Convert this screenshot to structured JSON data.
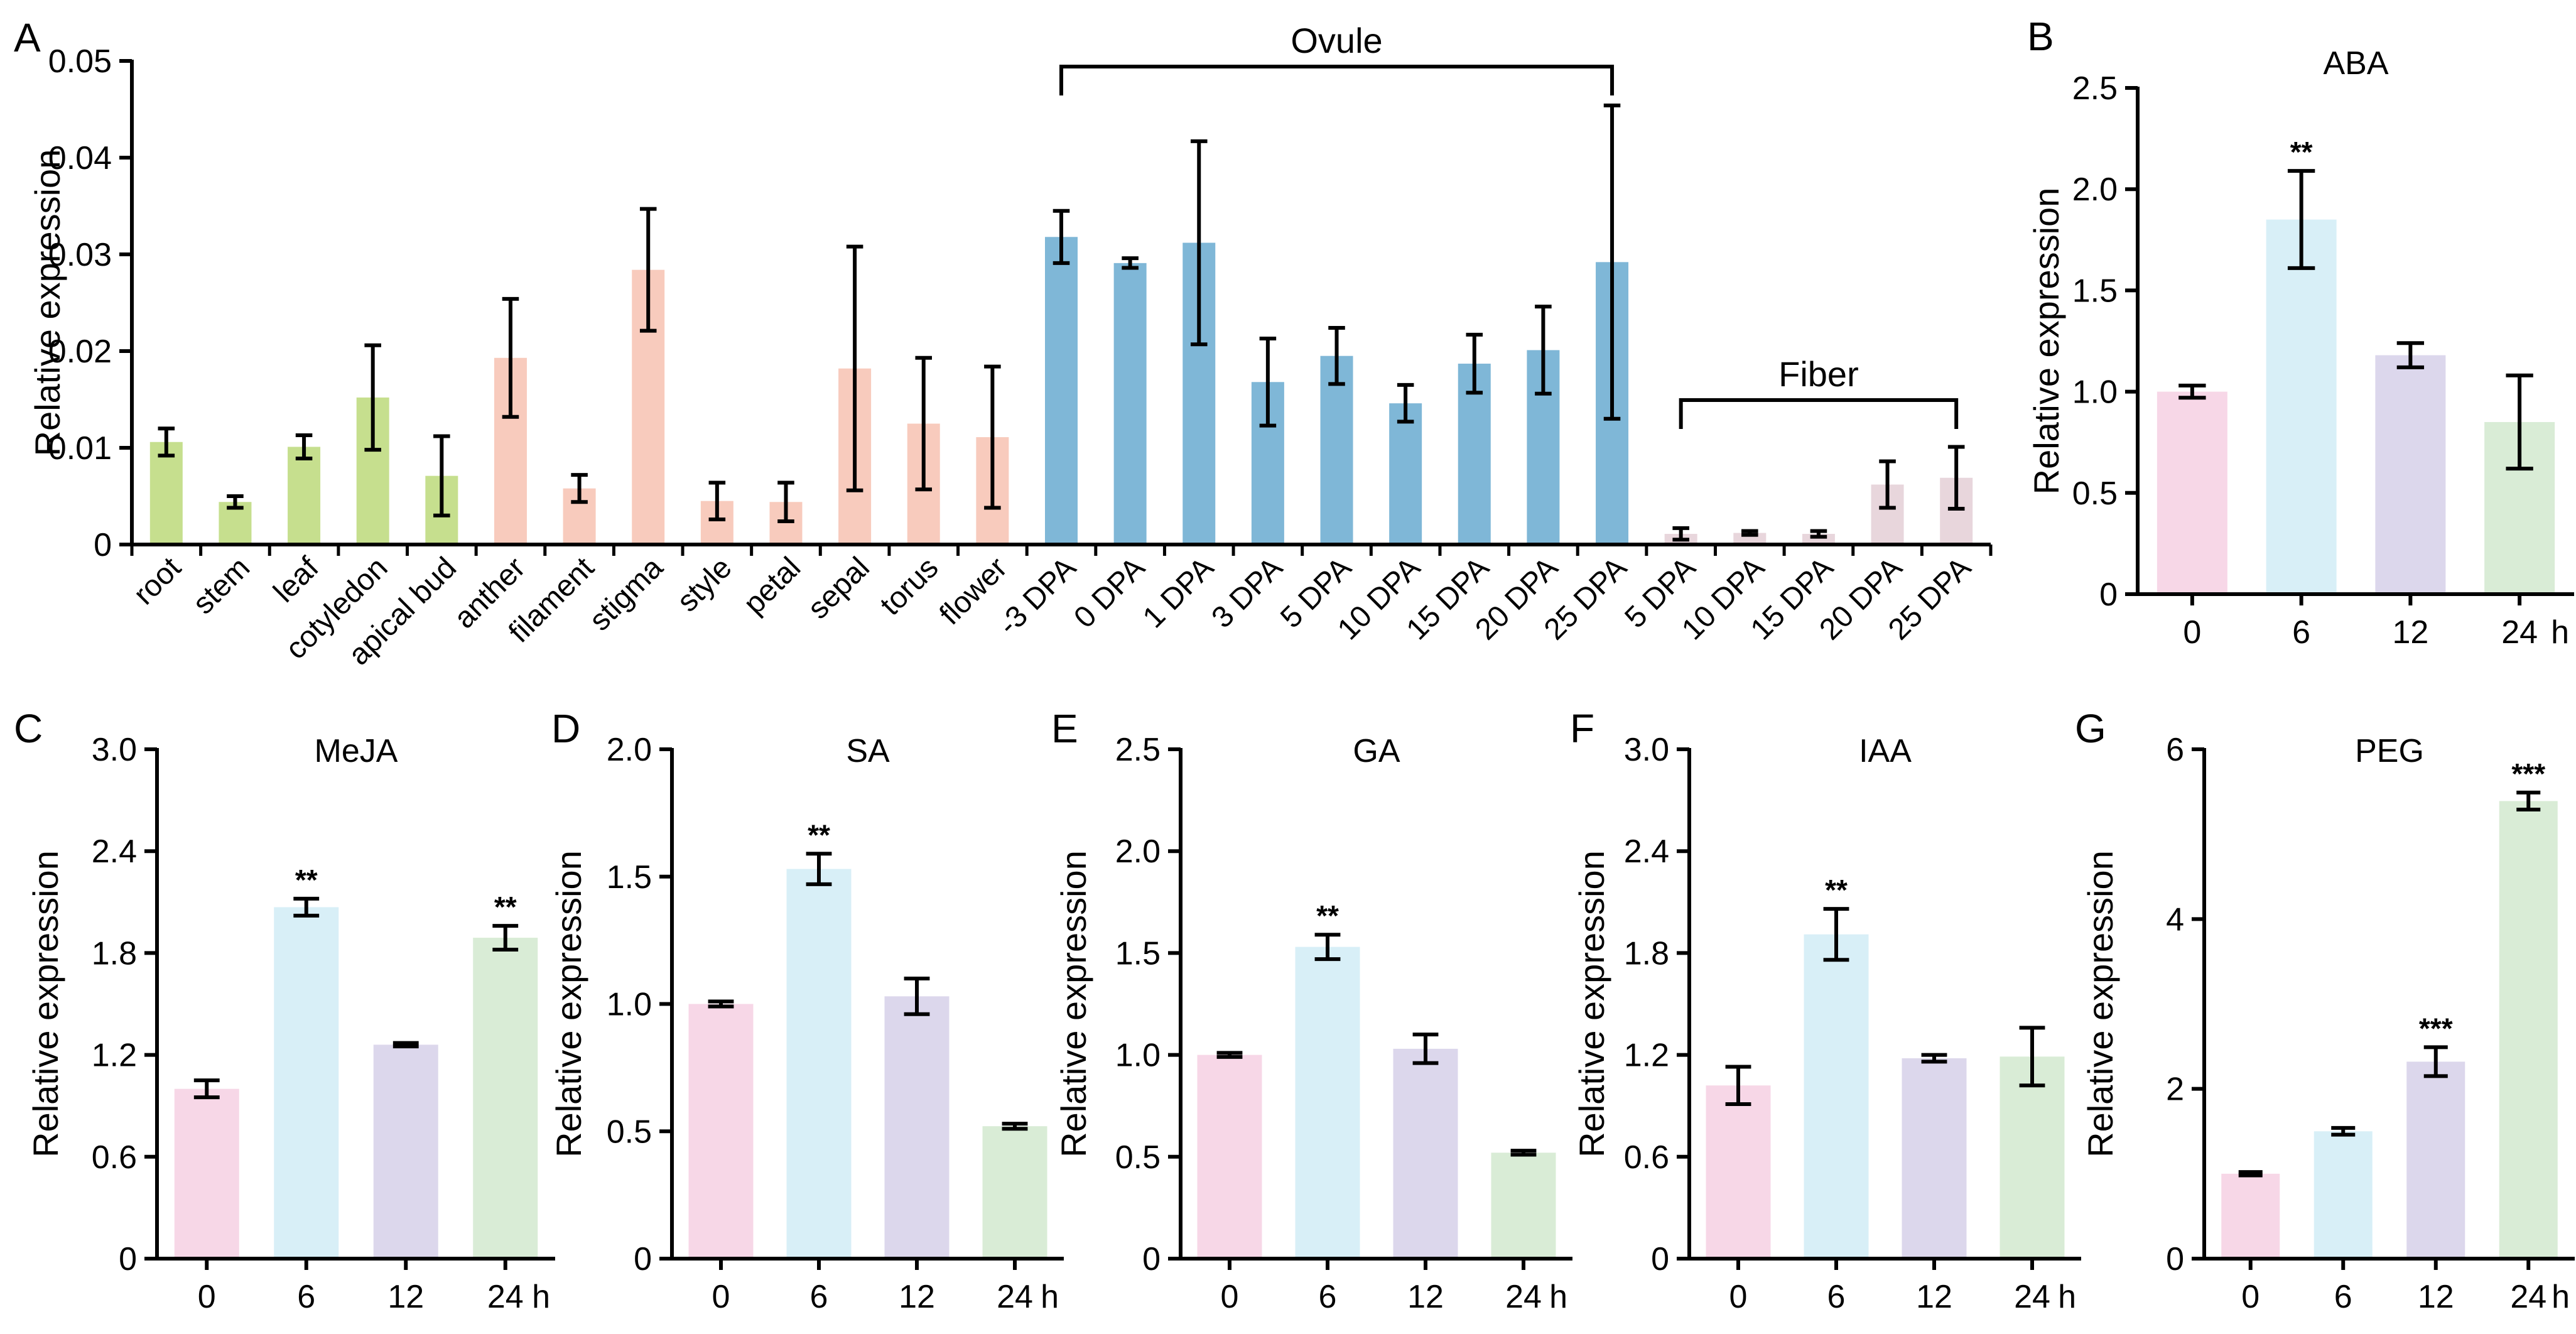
{
  "figure": {
    "background": "#ffffff",
    "axis_color": "#000000",
    "error_bar_color": "#000000"
  },
  "chart_data": [
    {
      "id": "A",
      "panel_label": "A",
      "type": "bar",
      "title": "",
      "ylabel": "Relative expression",
      "xlabel": "",
      "ylim": [
        0,
        0.05
      ],
      "yticks": [
        0,
        0.01,
        0.02,
        0.03,
        0.04,
        0.05
      ],
      "ytick_labels": [
        "0",
        "0.01",
        "0.02",
        "0.03",
        "0.04",
        "0.05"
      ],
      "categories": [
        "root",
        "stem",
        "leaf",
        "cotyledon",
        "apical bud",
        "anther",
        "filament",
        "stigma",
        "style",
        "petal",
        "sepal",
        "torus",
        "flower",
        "-3 DPA",
        "0 DPA",
        "1 DPA",
        "3 DPA",
        "5 DPA",
        "10 DPA",
        "15 DPA",
        "20 DPA",
        "25 DPA",
        "5 DPA",
        "10 DPA",
        "15 DPA",
        "20 DPA",
        "25 DPA"
      ],
      "values": [
        0.0106,
        0.0044,
        0.0101,
        0.0152,
        0.0071,
        0.0193,
        0.0058,
        0.0284,
        0.0045,
        0.0044,
        0.0182,
        0.0125,
        0.0111,
        0.0318,
        0.0291,
        0.0312,
        0.0168,
        0.0195,
        0.0146,
        0.0187,
        0.0201,
        0.0292,
        0.0011,
        0.0012,
        0.0011,
        0.0062,
        0.0069
      ],
      "errors": [
        0.0014,
        0.0006,
        0.0012,
        0.0054,
        0.0041,
        0.0061,
        0.0014,
        0.0063,
        0.0019,
        0.002,
        0.0126,
        0.0068,
        0.0073,
        0.0027,
        0.0005,
        0.0105,
        0.0045,
        0.0029,
        0.0019,
        0.003,
        0.0045,
        0.0162,
        0.0006,
        0.0002,
        0.0003,
        0.0024,
        0.0032
      ],
      "colors": [
        "#c6df8e",
        "#c6df8e",
        "#c6df8e",
        "#c6df8e",
        "#c6df8e",
        "#f8cbbd",
        "#f8cbbd",
        "#f8cbbd",
        "#f8cbbd",
        "#f8cbbd",
        "#f8cbbd",
        "#f8cbbd",
        "#f8cbbd",
        "#7fb7d7",
        "#7fb7d7",
        "#7fb7d7",
        "#7fb7d7",
        "#7fb7d7",
        "#7fb7d7",
        "#7fb7d7",
        "#7fb7d7",
        "#7fb7d7",
        "#e8d6dc",
        "#e8d6dc",
        "#e8d6dc",
        "#e8d6dc",
        "#e8d6dc"
      ],
      "significance": [],
      "unit_label": "",
      "groups": [
        {
          "label": "Ovule",
          "start": 13,
          "end": 21
        },
        {
          "label": "Fiber",
          "start": 22,
          "end": 26
        }
      ]
    },
    {
      "id": "B",
      "panel_label": "B",
      "type": "bar",
      "title": "ABA",
      "ylabel": "Relative expression",
      "xlabel": "h",
      "ylim": [
        0,
        2.5
      ],
      "yticks": [
        0,
        0.5,
        1.0,
        1.5,
        2.0,
        2.5
      ],
      "ytick_labels": [
        "0",
        "0.5",
        "1.0",
        "1.5",
        "2.0",
        "2.5"
      ],
      "categories": [
        "0",
        "6",
        "12",
        "24"
      ],
      "values": [
        1.0,
        1.85,
        1.18,
        0.85
      ],
      "errors": [
        0.03,
        0.24,
        0.06,
        0.23
      ],
      "colors": [
        "#f7d7e7",
        "#d8eff7",
        "#dcd7ec",
        "#d9ecd6"
      ],
      "significance": [
        "",
        "**",
        "",
        ""
      ],
      "unit_label": "h",
      "groups": []
    },
    {
      "id": "C",
      "panel_label": "C",
      "type": "bar",
      "title": "MeJA",
      "ylabel": "Relative expression",
      "xlabel": "h",
      "ylim": [
        0,
        3.0
      ],
      "yticks": [
        0,
        0.6,
        1.2,
        1.8,
        2.4,
        3.0
      ],
      "ytick_labels": [
        "0",
        "0.6",
        "1.2",
        "1.8",
        "2.4",
        "3.0"
      ],
      "categories": [
        "0",
        "6",
        "12",
        "24"
      ],
      "values": [
        1.0,
        2.07,
        1.26,
        1.89
      ],
      "errors": [
        0.05,
        0.05,
        0.01,
        0.07
      ],
      "colors": [
        "#f7d7e7",
        "#d8eff7",
        "#dcd7ec",
        "#d9ecd6"
      ],
      "significance": [
        "",
        "**",
        "",
        "**"
      ],
      "unit_label": "h",
      "groups": []
    },
    {
      "id": "D",
      "panel_label": "D",
      "type": "bar",
      "title": "SA",
      "ylabel": "Relative expression",
      "xlabel": "h",
      "ylim": [
        0,
        2.0
      ],
      "yticks": [
        0,
        0.5,
        1.0,
        1.5,
        2.0
      ],
      "ytick_labels": [
        "0",
        "0.5",
        "1.0",
        "1.5",
        "2.0"
      ],
      "categories": [
        "0",
        "6",
        "12",
        "24"
      ],
      "values": [
        1.0,
        1.53,
        1.03,
        0.52
      ],
      "errors": [
        0.01,
        0.06,
        0.07,
        0.01
      ],
      "colors": [
        "#f7d7e7",
        "#d8eff7",
        "#dcd7ec",
        "#d9ecd6"
      ],
      "significance": [
        "",
        "**",
        "",
        ""
      ],
      "unit_label": "h",
      "groups": []
    },
    {
      "id": "E",
      "panel_label": "E",
      "type": "bar",
      "title": "GA",
      "ylabel": "Relative expression",
      "xlabel": "h",
      "ylim": [
        0,
        2.5
      ],
      "yticks": [
        0,
        0.5,
        1.0,
        1.5,
        2.0,
        2.5
      ],
      "ytick_labels": [
        "0",
        "0.5",
        "1.0",
        "1.5",
        "2.0",
        "2.5"
      ],
      "categories": [
        "0",
        "6",
        "12",
        "24"
      ],
      "values": [
        1.0,
        1.53,
        1.03,
        0.52
      ],
      "errors": [
        0.01,
        0.06,
        0.07,
        0.01
      ],
      "colors": [
        "#f7d7e7",
        "#d8eff7",
        "#dcd7ec",
        "#d9ecd6"
      ],
      "significance": [
        "",
        "**",
        "",
        ""
      ],
      "unit_label": "h",
      "groups": []
    },
    {
      "id": "F",
      "panel_label": "F",
      "type": "bar",
      "title": "IAA",
      "ylabel": "Relative expression",
      "xlabel": "h",
      "ylim": [
        0,
        3.0
      ],
      "yticks": [
        0,
        0.6,
        1.2,
        1.8,
        2.4,
        3.0
      ],
      "ytick_labels": [
        "0",
        "0.6",
        "1.2",
        "1.8",
        "2.4",
        "3.0"
      ],
      "categories": [
        "0",
        "6",
        "12",
        "24"
      ],
      "values": [
        1.02,
        1.91,
        1.18,
        1.19
      ],
      "errors": [
        0.11,
        0.15,
        0.02,
        0.17
      ],
      "colors": [
        "#f7d7e7",
        "#d8eff7",
        "#dcd7ec",
        "#d9ecd6"
      ],
      "significance": [
        "",
        "**",
        "",
        ""
      ],
      "unit_label": "h",
      "groups": []
    },
    {
      "id": "G",
      "panel_label": "G",
      "type": "bar",
      "title": "PEG",
      "ylabel": "Relative expression",
      "xlabel": "h",
      "ylim": [
        0,
        6
      ],
      "yticks": [
        0,
        2,
        4,
        6
      ],
      "ytick_labels": [
        "0",
        "2",
        "4",
        "6"
      ],
      "categories": [
        "0",
        "6",
        "12",
        "24"
      ],
      "values": [
        1.0,
        1.5,
        2.32,
        5.39
      ],
      "errors": [
        0.02,
        0.04,
        0.17,
        0.1
      ],
      "colors": [
        "#f7d7e7",
        "#d8eff7",
        "#dcd7ec",
        "#d9ecd6"
      ],
      "significance": [
        "",
        "",
        "***",
        "***"
      ],
      "unit_label": "h",
      "groups": []
    }
  ]
}
